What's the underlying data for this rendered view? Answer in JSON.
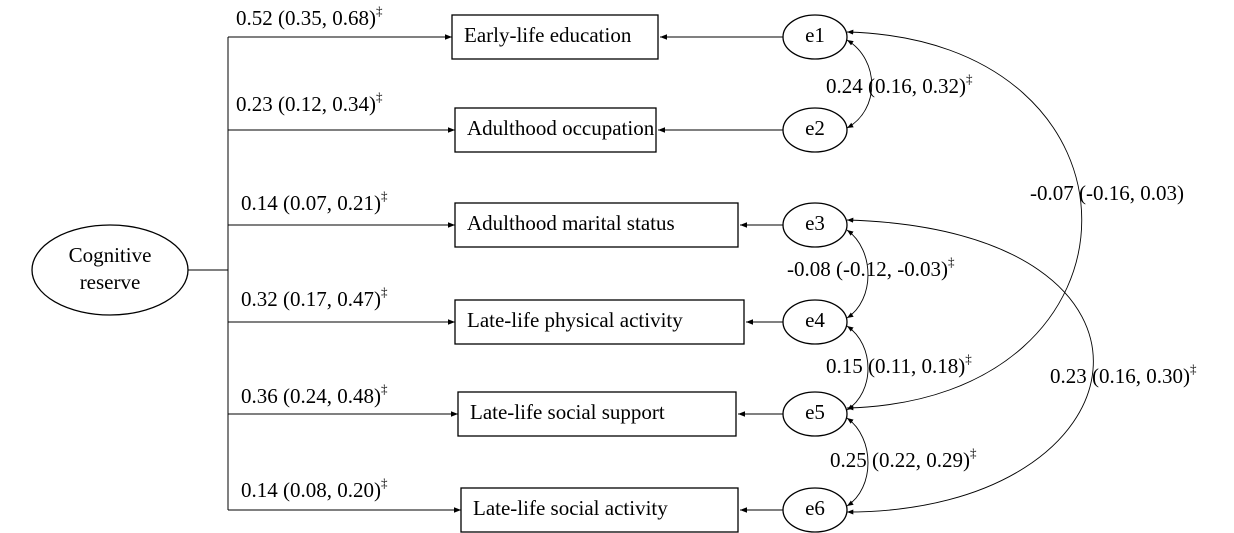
{
  "latent": {
    "label": [
      "Cognitive",
      "reserve"
    ]
  },
  "indicators": [
    {
      "label": "Early-life education",
      "loading": {
        "text": "0.52 (0.35, 0.68)",
        "mark": "‡"
      }
    },
    {
      "label": "Adulthood occupation",
      "loading": {
        "text": "0.23 (0.12, 0.34)",
        "mark": "‡"
      }
    },
    {
      "label": "Adulthood marital status",
      "loading": {
        "text": "0.14 (0.07, 0.21)",
        "mark": "‡"
      }
    },
    {
      "label": "Late-life physical activity",
      "loading": {
        "text": "0.32 (0.17, 0.47)",
        "mark": "‡"
      }
    },
    {
      "label": "Late-life social support",
      "loading": {
        "text": "0.36 (0.24, 0.48)",
        "mark": "‡"
      }
    },
    {
      "label": "Late-life social activity",
      "loading": {
        "text": "0.14 (0.08, 0.20)",
        "mark": "‡"
      }
    }
  ],
  "errors": [
    "e1",
    "e2",
    "e3",
    "e4",
    "e5",
    "e6"
  ],
  "covariances": [
    {
      "text": "0.24 (0.16, 0.32)",
      "mark": "‡"
    },
    {
      "text": "-0.07 (-0.16, 0.03)"
    },
    {
      "text": "-0.08 (-0.12, -0.03)",
      "mark": "‡"
    },
    {
      "text": "0.15 (0.11, 0.18)",
      "mark": "‡"
    },
    {
      "text": "0.23 (0.16, 0.30)",
      "mark": "‡"
    },
    {
      "text": "0.25 (0.22, 0.29)",
      "mark": "‡"
    }
  ]
}
